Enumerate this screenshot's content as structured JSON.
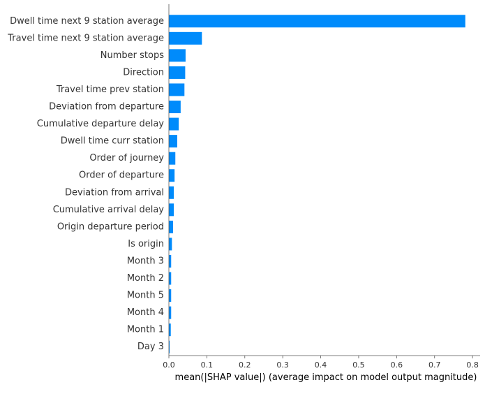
{
  "chart_data": {
    "type": "bar",
    "orientation": "horizontal",
    "categories": [
      "Dwell time next 9 station average",
      "Travel time next 9 station average",
      "Number stops",
      "Direction",
      "Travel time prev station",
      "Deviation from departure",
      "Cumulative departure delay",
      "Dwell time curr station",
      "Order of journey",
      "Order of departure",
      "Deviation from arrival",
      "Cumulative arrival delay",
      "Origin departure period",
      "Is origin",
      "Month 3",
      "Month 2",
      "Month 5",
      "Month 4",
      "Month 1",
      "Day 3"
    ],
    "values": [
      0.781,
      0.087,
      0.044,
      0.043,
      0.041,
      0.031,
      0.026,
      0.022,
      0.017,
      0.015,
      0.013,
      0.013,
      0.011,
      0.008,
      0.006,
      0.006,
      0.006,
      0.006,
      0.005,
      0.002
    ],
    "xlabel": "mean(|SHAP value|) (average impact on model output magnitude)",
    "xticks": [
      0.0,
      0.1,
      0.2,
      0.3,
      0.4,
      0.5,
      0.6,
      0.7,
      0.8
    ],
    "xlim": [
      0,
      0.82
    ],
    "grid": false,
    "bar_color": "#008bfb"
  }
}
